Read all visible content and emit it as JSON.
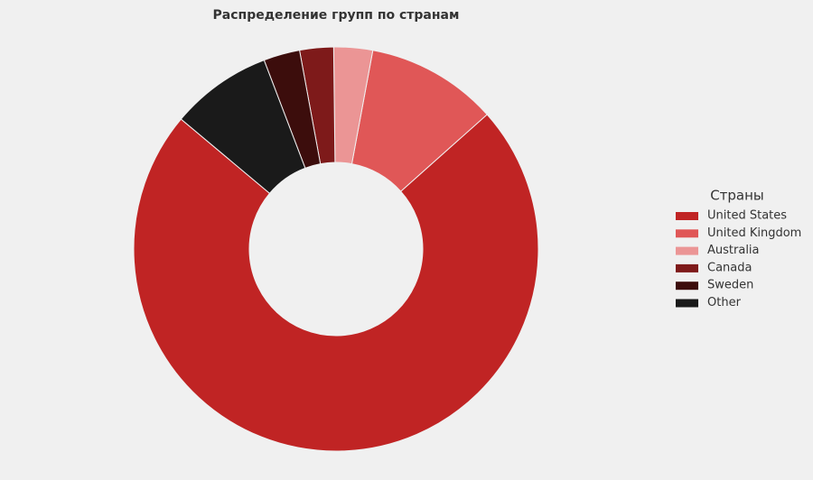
{
  "chart_data": {
    "type": "donut",
    "title": "Распределение групп по странам",
    "legend_title": "Страны",
    "categories": [
      "United States",
      "United Kingdom",
      "Australia",
      "Canada",
      "Sweden",
      "Other"
    ],
    "values": [
      72.7,
      10.5,
      3.1,
      2.7,
      2.9,
      8.1
    ],
    "colors": [
      "#c02424",
      "#e05757",
      "#eb9595",
      "#7e1a1a",
      "#3c0d0c",
      "#1a1a1a"
    ],
    "legend": "right"
  }
}
